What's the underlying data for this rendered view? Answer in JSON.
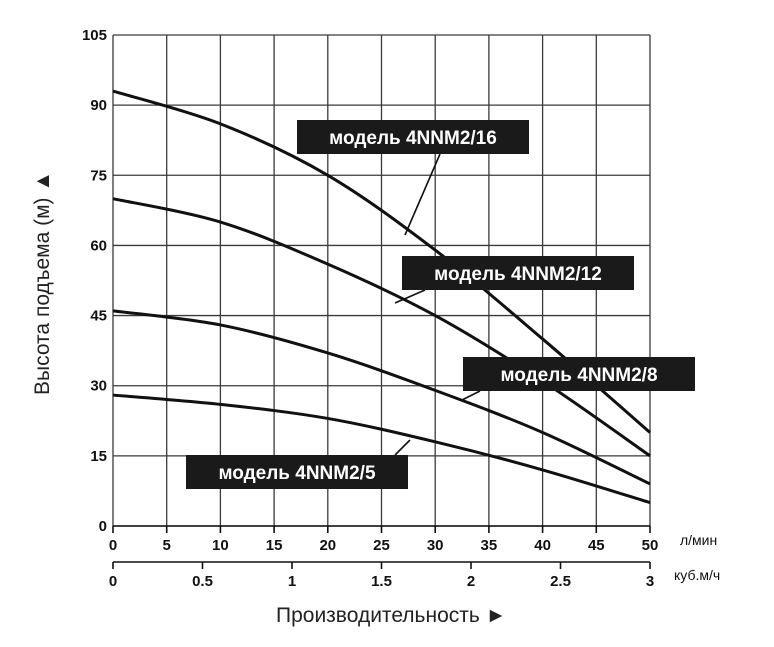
{
  "chart_data": {
    "type": "line",
    "ylabel": "Высота подъема (м) ▲",
    "xlabel": "Производительность ►",
    "x_unit": "л/мин",
    "x2_unit": "куб.м/ч",
    "x_ticks": [
      0,
      5,
      10,
      15,
      20,
      25,
      30,
      35,
      40,
      45,
      50
    ],
    "x2_ticks": [
      "0",
      "0.5",
      "1",
      "1.5",
      "2",
      "2.5",
      "3"
    ],
    "y_ticks": [
      0,
      15,
      30,
      45,
      60,
      75,
      90,
      105
    ],
    "xlim": [
      0,
      50
    ],
    "ylim": [
      0,
      105
    ],
    "grid": true,
    "series": [
      {
        "name": "модель 4NNM2/16",
        "x": [
          0,
          10,
          20,
          30,
          40,
          50
        ],
        "y": [
          93,
          86,
          75,
          59,
          40,
          20
        ]
      },
      {
        "name": "модель 4NNM2/12",
        "x": [
          0,
          10,
          20,
          30,
          40,
          50
        ],
        "y": [
          70,
          65,
          56,
          45,
          31,
          15
        ]
      },
      {
        "name": "модель 4NNM2/8",
        "x": [
          0,
          10,
          20,
          30,
          40,
          50
        ],
        "y": [
          46,
          43,
          37,
          29,
          20,
          9
        ]
      },
      {
        "name": "модель 4NNM2/5",
        "x": [
          0,
          10,
          20,
          30,
          40,
          50
        ],
        "y": [
          28,
          26,
          23,
          18,
          12,
          5
        ]
      }
    ]
  }
}
